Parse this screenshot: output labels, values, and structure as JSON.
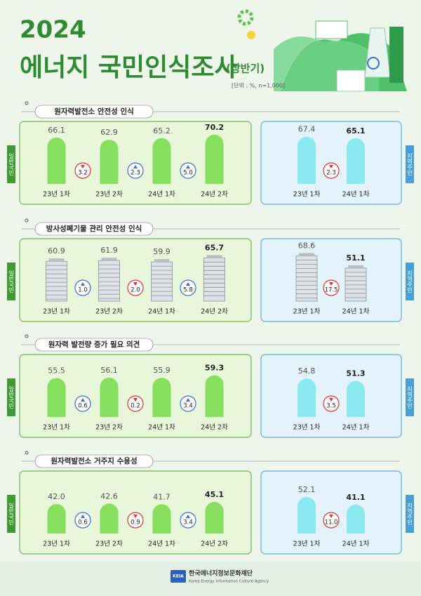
{
  "header": {
    "year": "2024",
    "title": "에너지 국민인식조사",
    "subtitle": "(상반기)",
    "unit_note": "[단위 : %, n=1,000]"
  },
  "chart_data": [
    {
      "type": "bar",
      "title": "원자력발전소 안전성 인식",
      "ylim": [
        0,
        80
      ],
      "up_color": "#3b6fd6",
      "down_color": "#e0342f",
      "groups": [
        {
          "name": "일반국민",
          "color": "#86e05e",
          "categories": [
            "23년 1차",
            "23년 2차",
            "24년 1차",
            "24년 2차"
          ],
          "values": [
            66.1,
            62.9,
            65.2,
            70.2
          ],
          "value_labels": [
            "66.1",
            "62.9",
            "65.2",
            "70.2"
          ],
          "changes": [
            3.2,
            2.3,
            5.0
          ],
          "change_labels": [
            "3.2",
            "2.3",
            "5.0"
          ]
        },
        {
          "name": "지역주민",
          "color": "#8aeaf0",
          "categories": [
            "23년 1차",
            "24년 1차"
          ],
          "values": [
            67.4,
            65.1
          ],
          "value_labels": [
            "67.4",
            "65.1"
          ],
          "changes": [
            2.3
          ],
          "change_labels": [
            "2.3"
          ]
        }
      ]
    },
    {
      "type": "pictogram",
      "title": "방사성폐기물 관리 안전성 인식",
      "ylim": [
        0,
        80
      ],
      "up_color": "#3b6fd6",
      "down_color": "#e0342f",
      "groups": [
        {
          "name": "일반국민",
          "color": "#dde2e6",
          "categories": [
            "23년 1차",
            "23년 2차",
            "24년 1차",
            "24년 2차"
          ],
          "values": [
            60.9,
            61.9,
            59.9,
            65.7
          ],
          "value_labels": [
            "60.9",
            "61.9",
            "59.9",
            "65.7"
          ],
          "changes": [
            1.0,
            2.0,
            5.8
          ],
          "change_labels": [
            "1.0",
            "2.0",
            "5.8"
          ]
        },
        {
          "name": "지역주민",
          "color": "#dde2e6",
          "categories": [
            "23년 1차",
            "24년 1차"
          ],
          "values": [
            68.6,
            51.1
          ],
          "value_labels": [
            "68.6",
            "51.1"
          ],
          "changes": [
            17.5
          ],
          "change_labels": [
            "17.5"
          ]
        }
      ]
    },
    {
      "type": "bar",
      "title": "원자력 발전량 증가 필요 의견",
      "ylim": [
        0,
        80
      ],
      "up_color": "#3b6fd6",
      "down_color": "#e0342f",
      "groups": [
        {
          "name": "일반국민",
          "color": "#86e05e",
          "categories": [
            "23년 1차",
            "23년 2차",
            "24년 1차",
            "24년 2차"
          ],
          "values": [
            55.5,
            56.1,
            55.9,
            59.3
          ],
          "value_labels": [
            "55.5",
            "56.1",
            "55.9",
            "59.3"
          ],
          "changes": [
            0.6,
            0.2,
            3.4
          ],
          "change_labels": [
            "0.6",
            "0.2",
            "3.4"
          ]
        },
        {
          "name": "지역주민",
          "color": "#8aeaf0",
          "categories": [
            "23년 1차",
            "24년 1차"
          ],
          "values": [
            54.8,
            51.3
          ],
          "value_labels": [
            "54.8",
            "51.3"
          ],
          "changes": [
            3.5
          ],
          "change_labels": [
            "3.5"
          ]
        }
      ]
    },
    {
      "type": "bar",
      "title": "원자력발전소 거주지 수용성",
      "ylim": [
        0,
        80
      ],
      "up_color": "#3b6fd6",
      "down_color": "#e0342f",
      "groups": [
        {
          "name": "일반국민",
          "color": "#86e05e",
          "categories": [
            "23년 1차",
            "23년 2차",
            "24년 1차",
            "24년 2차"
          ],
          "values": [
            42.0,
            42.6,
            41.7,
            45.1
          ],
          "value_labels": [
            "42.0",
            "42.6",
            "41.7",
            "45.1"
          ],
          "changes": [
            0.6,
            0.9,
            3.4
          ],
          "change_labels": [
            "0.6",
            "0.9",
            "3.4"
          ]
        },
        {
          "name": "지역주민",
          "color": "#8aeaf0",
          "categories": [
            "23년 1차",
            "24년 1차"
          ],
          "values": [
            52.1,
            41.1
          ],
          "value_labels": [
            "52.1",
            "41.1"
          ],
          "changes": [
            11.0
          ],
          "change_labels": [
            "11.0"
          ]
        }
      ]
    }
  ],
  "footer": {
    "logo": "KEIA",
    "org": "한국에너지정보문화재단",
    "org_en": "Korea Energy Information Culture Agency"
  }
}
